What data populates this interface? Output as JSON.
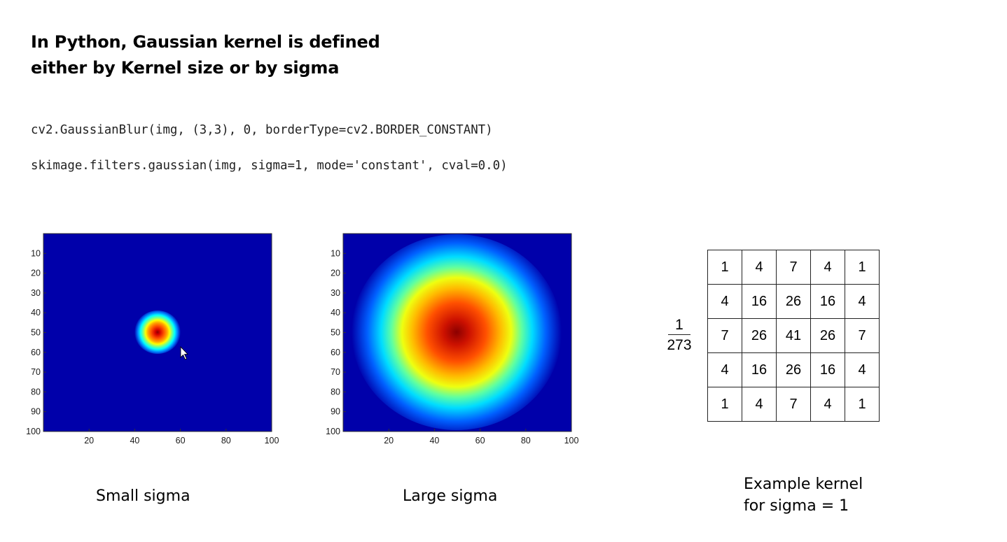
{
  "title_lines": [
    "In Python, Gaussian kernel is defined",
    "either by Kernel size or by sigma"
  ],
  "code_lines": [
    "cv2.GaussianBlur(img, (3,3), 0, borderType=cv2.BORDER_CONSTANT)",
    "skimage.filters.gaussian(img, sigma=1, mode='constant', cval=0.0)"
  ],
  "colors": {
    "jet_background": "#0000aa",
    "jet_peak": "#8b0000"
  },
  "chart_data": [
    {
      "type": "heatmap",
      "colormap": "jet",
      "x_ticks": [
        "20",
        "40",
        "60",
        "80",
        "100"
      ],
      "y_ticks": [
        "10",
        "20",
        "30",
        "40",
        "50",
        "60",
        "70",
        "80",
        "90",
        "100"
      ],
      "xlim": [
        0,
        100
      ],
      "ylim": [
        0,
        100
      ],
      "center": [
        50,
        50
      ],
      "gaussian_sigma": 5
    },
    {
      "type": "heatmap",
      "colormap": "jet",
      "x_ticks": [
        "20",
        "40",
        "60",
        "80",
        "100"
      ],
      "y_ticks": [
        "10",
        "20",
        "30",
        "40",
        "50",
        "60",
        "70",
        "80",
        "90",
        "100"
      ],
      "xlim": [
        0,
        100
      ],
      "ylim": [
        0,
        100
      ],
      "center": [
        50,
        50
      ],
      "gaussian_sigma": 18
    }
  ],
  "captions": {
    "small": "Small sigma",
    "large": "Large sigma",
    "kernel_lines": [
      "Example kernel",
      "for sigma = 1"
    ]
  },
  "kernel": {
    "numerator": "1",
    "denominator": "273",
    "rows": [
      [
        "1",
        "4",
        "7",
        "4",
        "1"
      ],
      [
        "4",
        "16",
        "26",
        "16",
        "4"
      ],
      [
        "7",
        "26",
        "41",
        "26",
        "7"
      ],
      [
        "4",
        "16",
        "26",
        "16",
        "4"
      ],
      [
        "1",
        "4",
        "7",
        "4",
        "1"
      ]
    ]
  }
}
